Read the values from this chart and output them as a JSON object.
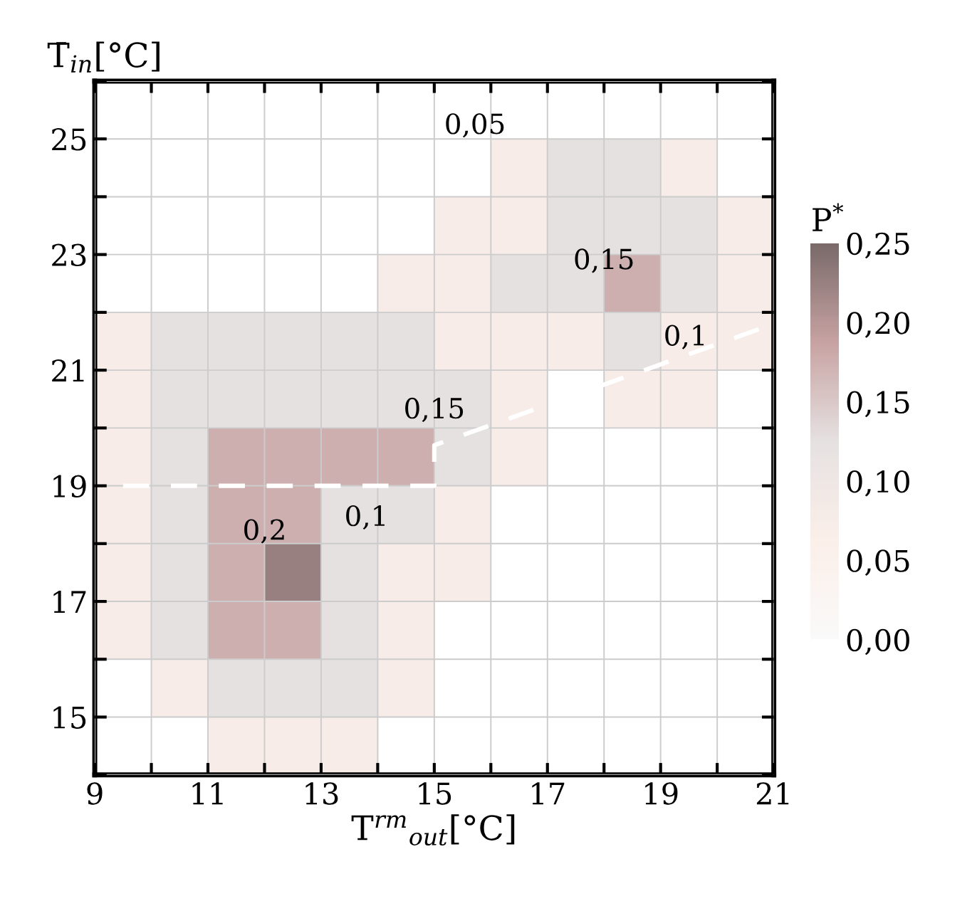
{
  "chart_data": {
    "type": "heatmap",
    "xlabel": "T$^{rm}$$_{out}$[°C]",
    "ylabel": "T̄$_{in}$[°C]",
    "clabel": "P$^{*}$",
    "x": [
      9.5,
      10.5,
      11.5,
      12.5,
      13.5,
      14.5,
      15.5,
      16.5,
      17.5,
      18.5,
      19.5,
      20.5
    ],
    "y": [
      24.5,
      23.5,
      22.5,
      21.5,
      20.5,
      19.5,
      18.5,
      17.5,
      16.5,
      15.5,
      14.5
    ],
    "cells": [
      [
        null,
        null,
        null,
        null,
        null,
        null,
        null,
        0.075,
        0.125,
        0.125,
        0.075,
        null
      ],
      [
        null,
        null,
        null,
        null,
        null,
        null,
        0.075,
        0.075,
        0.125,
        0.125,
        0.125,
        0.075
      ],
      [
        null,
        null,
        null,
        null,
        null,
        0.075,
        0.075,
        0.125,
        0.125,
        0.175,
        0.125,
        0.075
      ],
      [
        0.075,
        0.125,
        0.125,
        0.125,
        0.125,
        0.125,
        0.075,
        0.075,
        0.075,
        0.125,
        0.075,
        0.075
      ],
      [
        0.075,
        0.125,
        0.125,
        0.125,
        0.125,
        0.125,
        0.125,
        0.075,
        null,
        0.075,
        0.075,
        null
      ],
      [
        0.075,
        0.125,
        0.175,
        0.175,
        0.175,
        0.175,
        0.125,
        0.075,
        null,
        null,
        null,
        null
      ],
      [
        0.075,
        0.125,
        0.175,
        0.175,
        0.125,
        0.125,
        0.075,
        null,
        null,
        null,
        null,
        null
      ],
      [
        0.075,
        0.125,
        0.175,
        0.225,
        0.125,
        0.075,
        0.075,
        null,
        null,
        null,
        null,
        null
      ],
      [
        0.075,
        0.125,
        0.175,
        0.175,
        0.125,
        0.075,
        null,
        null,
        null,
        null,
        null,
        null
      ],
      [
        null,
        0.075,
        0.125,
        0.125,
        0.125,
        0.075,
        null,
        null,
        null,
        null,
        null,
        null
      ],
      [
        null,
        null,
        0.075,
        0.075,
        0.075,
        null,
        null,
        null,
        null,
        null,
        null,
        null
      ]
    ],
    "colors": [
      "#fafafa",
      "#fbefe9",
      "#e6e1e1",
      "#c8a3a3",
      "#7a6a6a"
    ],
    "clim": [
      0,
      0.25
    ],
    "cticks": [
      {
        "value": 0,
        "label": "0,00"
      },
      {
        "value": 0.05,
        "label": "0,05"
      },
      {
        "value": 0.1,
        "label": "0,10"
      },
      {
        "value": 0.15,
        "label": "0,15"
      },
      {
        "value": 0.2,
        "label": "0,20"
      },
      {
        "value": 0.25,
        "label": "0,25"
      }
    ],
    "series": [
      {
        "type": "line",
        "color": "#ffffff",
        "line_style": "dashed",
        "x": [
          9.5,
          15,
          15,
          21
        ],
        "values": [
          19,
          19,
          19.7,
          21.8
        ]
      }
    ],
    "xlim": [
      9,
      21
    ],
    "ylim": [
      14,
      26
    ],
    "xticks": [
      9,
      {
        "value": 10,
        "label": null
      },
      11,
      {
        "value": 12,
        "label": null
      },
      13,
      {
        "value": 14,
        "label": null
      },
      15,
      {
        "value": 16,
        "label": null
      },
      17,
      {
        "value": 18,
        "label": null
      },
      19,
      {
        "value": 20,
        "label": null
      },
      21
    ],
    "yticks": [
      {
        "value": 14,
        "label": null
      },
      15,
      {
        "value": 16,
        "label": null
      },
      17,
      {
        "value": 18,
        "label": null
      },
      19,
      {
        "value": 20,
        "label": null
      },
      21,
      {
        "value": 22,
        "label": null
      },
      23,
      {
        "value": 24,
        "label": null
      },
      25,
      {
        "value": 26,
        "label": null
      }
    ],
    "grid": true,
    "annotations": [
      "0,05",
      "0,15",
      "0,1",
      "0,15",
      "0,2",
      "0,1"
    ]
  }
}
